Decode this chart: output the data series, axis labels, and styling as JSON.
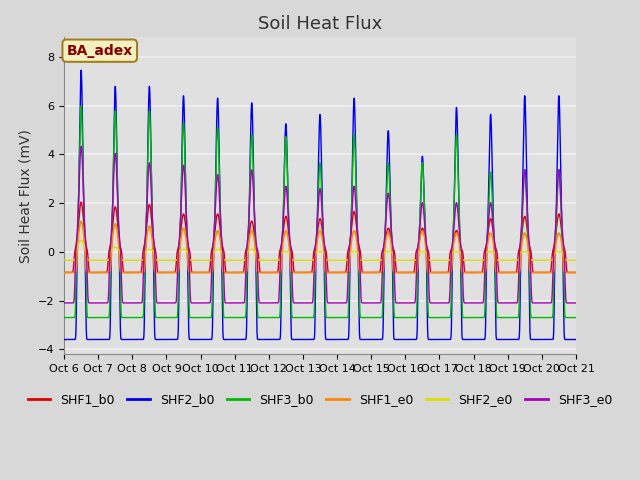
{
  "title": "Soil Heat Flux",
  "ylabel": "Soil Heat Flux (mV)",
  "ylim": [
    -4.2,
    8.8
  ],
  "yticks": [
    -4,
    -2,
    0,
    2,
    4,
    6,
    8
  ],
  "background_color": "#d8d8d8",
  "plot_bg_color": "#e0e0e0",
  "grid_color": "#f0f0f0",
  "annotation_text": "BA_adex",
  "annotation_bg": "#f5f0c0",
  "annotation_border": "#a08020",
  "annotation_text_color": "#880000",
  "series": [
    "SHF1_b0",
    "SHF2_b0",
    "SHF3_b0",
    "SHF1_e0",
    "SHF2_e0",
    "SHF3_e0"
  ],
  "colors": [
    "#dd0000",
    "#0000ee",
    "#00bb00",
    "#ff8800",
    "#dddd00",
    "#aa00bb"
  ],
  "start_day": 6,
  "end_day": 21,
  "num_days": 15,
  "title_fontsize": 13,
  "label_fontsize": 10,
  "tick_fontsize": 8
}
